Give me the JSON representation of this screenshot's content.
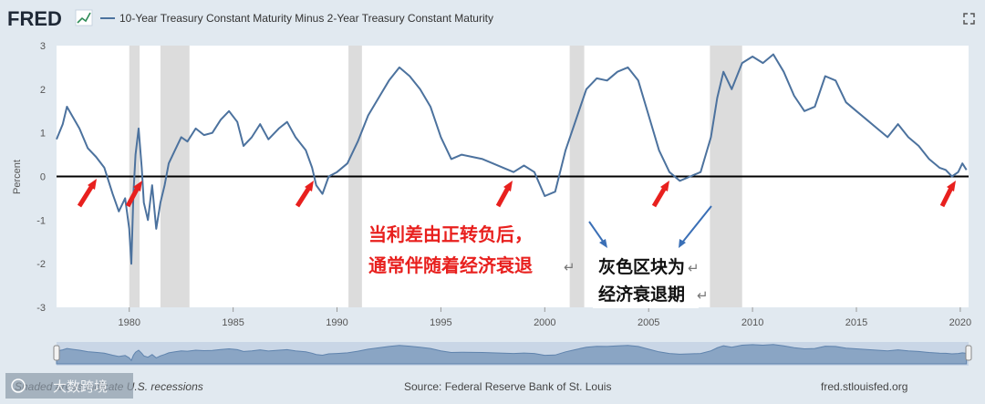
{
  "header": {
    "logo": "FRED",
    "series_title": "10-Year Treasury Constant Maturity Minus 2-Year Treasury Constant Maturity"
  },
  "chart_data": {
    "type": "line",
    "ylabel": "Percent",
    "ylim": [
      -3,
      3
    ],
    "xlim": [
      1976.5,
      2020.4
    ],
    "yticks": [
      -3,
      -2,
      -1,
      0,
      1,
      2,
      3
    ],
    "xticks": [
      1980,
      1985,
      1990,
      1995,
      2000,
      2005,
      2010,
      2015,
      2020
    ],
    "grid": false,
    "series": [
      {
        "name": "10-Year Treasury Constant Maturity Minus 2-Year Treasury Constant Maturity",
        "color": "#4c729e",
        "x": [
          1976.5,
          1976.8,
          1977.0,
          1977.3,
          1977.6,
          1978.0,
          1978.4,
          1978.8,
          1979.2,
          1979.5,
          1979.8,
          1980.0,
          1980.1,
          1980.2,
          1980.3,
          1980.45,
          1980.6,
          1980.7,
          1980.9,
          1981.1,
          1981.3,
          1981.5,
          1981.7,
          1981.9,
          1982.2,
          1982.5,
          1982.8,
          1983.2,
          1983.6,
          1984.0,
          1984.4,
          1984.8,
          1985.2,
          1985.5,
          1985.9,
          1986.3,
          1986.7,
          1987.2,
          1987.6,
          1988.0,
          1988.5,
          1988.8,
          1989.0,
          1989.3,
          1989.6,
          1990.0,
          1990.5,
          1991.0,
          1991.5,
          1992.0,
          1992.5,
          1993.0,
          1993.5,
          1994.0,
          1994.5,
          1995.0,
          1995.5,
          1996.0,
          1996.5,
          1997.0,
          1997.5,
          1998.0,
          1998.5,
          1999.0,
          1999.5,
          2000.0,
          2000.5,
          2001.0,
          2001.5,
          2002.0,
          2002.5,
          2003.0,
          2003.5,
          2004.0,
          2004.5,
          2005.0,
          2005.5,
          2006.0,
          2006.5,
          2007.0,
          2007.5,
          2008.0,
          2008.3,
          2008.6,
          2009.0,
          2009.5,
          2010.0,
          2010.5,
          2011.0,
          2011.5,
          2012.0,
          2012.5,
          2013.0,
          2013.5,
          2014.0,
          2014.5,
          2015.0,
          2015.5,
          2016.0,
          2016.5,
          2017.0,
          2017.5,
          2018.0,
          2018.5,
          2019.0,
          2019.3,
          2019.6,
          2019.9,
          2020.1,
          2020.3
        ],
        "y": [
          0.85,
          1.2,
          1.6,
          1.35,
          1.1,
          0.65,
          0.45,
          0.2,
          -0.4,
          -0.8,
          -0.5,
          -1.2,
          -2.0,
          -0.4,
          0.5,
          1.1,
          0.2,
          -0.6,
          -1.0,
          -0.2,
          -1.2,
          -0.6,
          -0.2,
          0.3,
          0.6,
          0.9,
          0.8,
          1.1,
          0.95,
          1.0,
          1.3,
          1.5,
          1.25,
          0.7,
          0.9,
          1.2,
          0.85,
          1.1,
          1.25,
          0.9,
          0.6,
          0.2,
          -0.2,
          -0.4,
          0.0,
          0.1,
          0.3,
          0.8,
          1.4,
          1.8,
          2.2,
          2.5,
          2.3,
          2.0,
          1.6,
          0.9,
          0.4,
          0.5,
          0.45,
          0.4,
          0.3,
          0.2,
          0.1,
          0.25,
          0.1,
          -0.45,
          -0.35,
          0.6,
          1.3,
          2.0,
          2.25,
          2.2,
          2.4,
          2.5,
          2.2,
          1.4,
          0.6,
          0.1,
          -0.1,
          0.0,
          0.1,
          0.9,
          1.8,
          2.4,
          2.0,
          2.6,
          2.75,
          2.6,
          2.8,
          2.4,
          1.85,
          1.5,
          1.6,
          2.3,
          2.2,
          1.7,
          1.5,
          1.3,
          1.1,
          0.9,
          1.2,
          0.9,
          0.7,
          0.4,
          0.2,
          0.15,
          0.0,
          0.1,
          0.3,
          0.15
        ]
      }
    ],
    "recessions": [
      [
        1980.0,
        1980.5
      ],
      [
        1981.5,
        1982.9
      ],
      [
        1990.55,
        1991.2
      ],
      [
        2001.2,
        2001.9
      ],
      [
        2007.95,
        2009.5
      ]
    ],
    "annotations": {
      "red_text": [
        "当利差由正转负后，",
        "通常伴随着经济衰退"
      ],
      "black_text": [
        "灰色区块为",
        "经济衰退期"
      ]
    }
  },
  "footer": {
    "shaded_note": "Shaded areas indicate U.S. recessions",
    "source": "Source: Federal Reserve Bank of St. Louis",
    "url": "fred.stlouisfed.org",
    "watermark": "大数跨境"
  },
  "colors": {
    "background": "#e1e9f0",
    "plot_bg": "#ffffff",
    "line": "#4c729e",
    "recession": "#dcdcdc",
    "arrow_red": "#e8201e",
    "arrow_blue": "#3a6fb6"
  }
}
